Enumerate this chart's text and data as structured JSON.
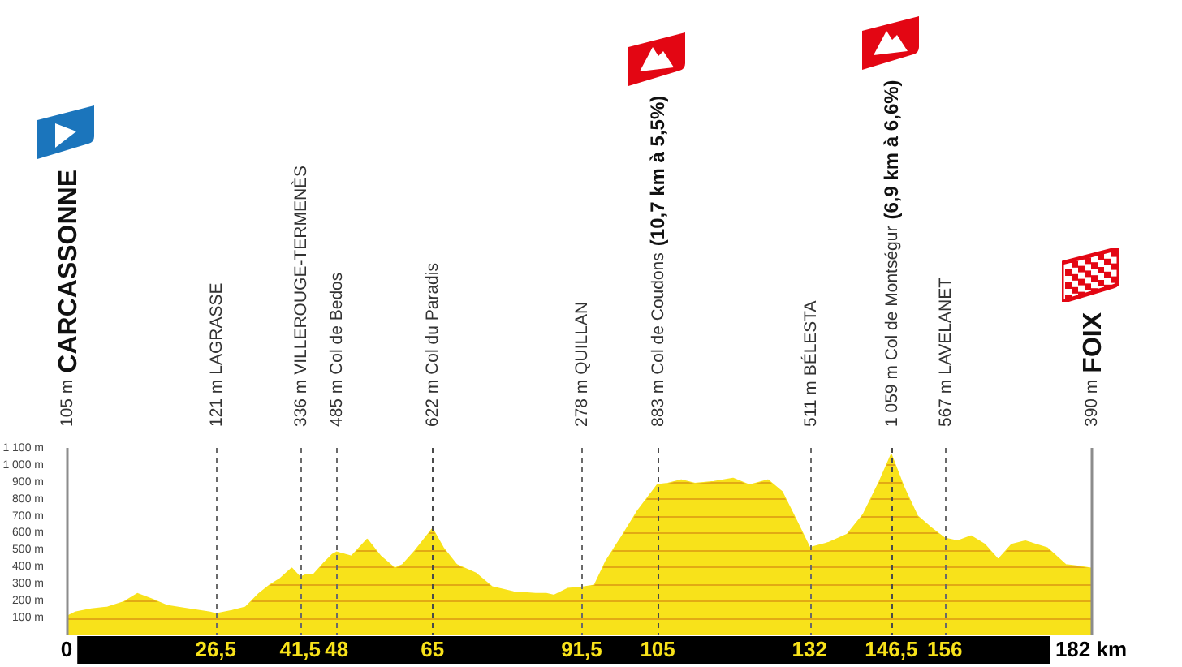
{
  "chart_data": {
    "type": "area",
    "color": "#f8e21a",
    "x": [
      0,
      1.5,
      4.4,
      7.3,
      10.1,
      12.6,
      15,
      17.8,
      21.7,
      25.5,
      26.5,
      29.4,
      31.8,
      34.2,
      36.1,
      38,
      40,
      41.5,
      42.4,
      43.8,
      45.7,
      47.2,
      48,
      50.6,
      53.4,
      55.8,
      58.3,
      59.7,
      62.1,
      65,
      66.9,
      69.3,
      72.7,
      75.6,
      79.4,
      83.3,
      85.2,
      86.6,
      89,
      91.5,
      93.8,
      95.8,
      98.7,
      101.5,
      105,
      106.8,
      109.2,
      111.6,
      115,
      118.4,
      121.3,
      124.6,
      127.1,
      129.5,
      132,
      135.3,
      138.7,
      141.6,
      144.4,
      146.5,
      148.7,
      151.1,
      153.5,
      156,
      158.3,
      160.7,
      163.1,
      165.5,
      167.9,
      170.3,
      174.2,
      177.5,
      179.9,
      182
    ],
    "values": [
      105,
      130,
      150,
      160,
      190,
      240,
      210,
      170,
      150,
      130,
      121,
      140,
      160,
      240,
      290,
      330,
      390,
      336,
      350,
      350,
      420,
      470,
      485,
      460,
      560,
      460,
      390,
      410,
      500,
      622,
      510,
      410,
      360,
      280,
      250,
      240,
      240,
      230,
      270,
      278,
      290,
      430,
      580,
      730,
      883,
      890,
      910,
      890,
      900,
      920,
      880,
      910,
      840,
      680,
      511,
      540,
      590,
      710,
      900,
      1059,
      870,
      700,
      630,
      567,
      550,
      580,
      530,
      440,
      530,
      550,
      510,
      410,
      400,
      390
    ],
    "xlim": [
      0,
      182
    ],
    "xticks": [
      {
        "value": 0,
        "label": "0"
      },
      {
        "value": 26.5,
        "label": "26,5"
      },
      {
        "value": 41.5,
        "label": "41,5"
      },
      {
        "value": 48,
        "label": "48"
      },
      {
        "value": 65,
        "label": "65"
      },
      {
        "value": 91.5,
        "label": "91,5"
      },
      {
        "value": 105,
        "label": "105"
      },
      {
        "value": 132,
        "label": "132"
      },
      {
        "value": 146.5,
        "label": "146,5"
      },
      {
        "value": 156,
        "label": "156"
      },
      {
        "value": 182,
        "label": "182 km"
      }
    ],
    "ylim": [
      0,
      1100
    ],
    "yticks": [
      {
        "value": 100,
        "label": "100 m"
      },
      {
        "value": 200,
        "label": "200 m"
      },
      {
        "value": 300,
        "label": "300 m"
      },
      {
        "value": 400,
        "label": "400 m"
      },
      {
        "value": 500,
        "label": "500 m"
      },
      {
        "value": 600,
        "label": "600 m"
      },
      {
        "value": 700,
        "label": "700 m"
      },
      {
        "value": 800,
        "label": "800 m"
      },
      {
        "value": 900,
        "label": "900 m"
      },
      {
        "value": 1000,
        "label": "1 000 m"
      },
      {
        "value": 1100,
        "label": "1 100 m"
      }
    ],
    "grid": "y",
    "annotations": [
      "105 m CARCASSONNE"
    ],
    "ref_lines": [
      {
        "axis": "x",
        "value": 26.5,
        "label": "121 m LAGRASSE",
        "color": "#6a6a6a",
        "line_style": "dashed"
      },
      {
        "axis": "x",
        "value": 41.5,
        "label": "336 m VILLEROUGE-TERMENÈS",
        "color": "#6a6a6a",
        "line_style": "dashed"
      },
      {
        "axis": "x",
        "value": 48,
        "label": "485 m Col de Bedos",
        "color": "#6a6a6a",
        "line_style": "dashed"
      },
      {
        "axis": "x",
        "value": 65,
        "label": "622 m Col du Paradis",
        "color": "#4a4a4a",
        "line_style": "dashed"
      },
      {
        "axis": "x",
        "value": 91.5,
        "label": "278 m QUILLAN",
        "color": "#6a6a6a",
        "line_style": "dashed"
      },
      {
        "axis": "x",
        "value": 105,
        "label": "883 m Col de Coudons (10,7 km à 5,5%)",
        "color": "#4a4a4a",
        "line_style": "dashed"
      },
      {
        "axis": "x",
        "value": 132,
        "label": "511 m BÉLESTA",
        "color": "#6a6a6a",
        "line_style": "dashed"
      },
      {
        "axis": "x",
        "value": 146.5,
        "label": "1 059 m Col de Montségur (6,9 km à 6,6%)",
        "color": "#4a4a4a",
        "line_style": "dashed"
      },
      {
        "axis": "x",
        "value": 156,
        "label": "567 m LAVELANET",
        "color": "#6a6a6a",
        "line_style": "dashed"
      },
      {
        "axis": "x",
        "value": 182,
        "label": "390 m FOIX",
        "color": "#8c8c8c",
        "line_style": "solid"
      }
    ]
  }
}
